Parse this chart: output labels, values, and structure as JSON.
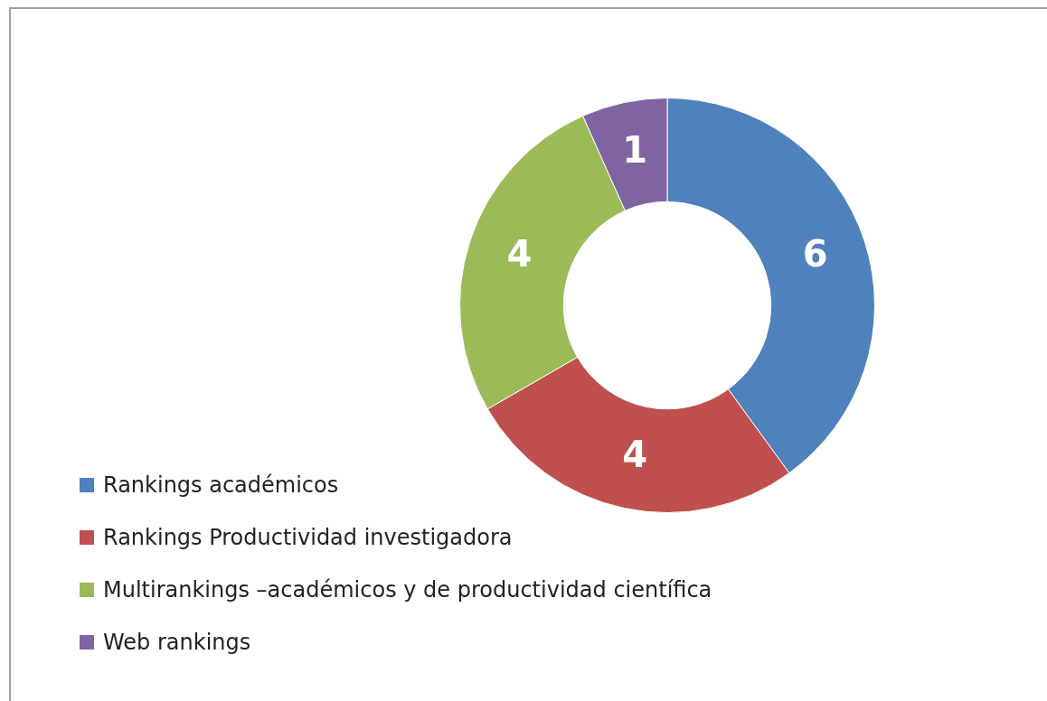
{
  "chart_data": {
    "type": "donut",
    "categories": [
      "Rankings académicos",
      "Rankings Productividad investigadora",
      "Multirankings –académicos y de productividad científica",
      "Web rankings"
    ],
    "values": [
      6,
      4,
      4,
      1
    ],
    "colors": [
      "#4f81bd",
      "#c0504d",
      "#9bbb59",
      "#8064a2"
    ],
    "data_labels": true,
    "legend": "bottom left"
  }
}
